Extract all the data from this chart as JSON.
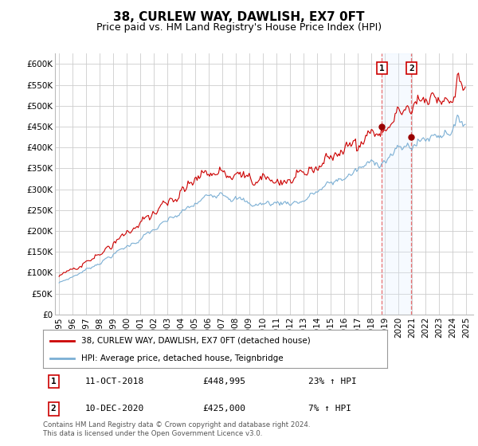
{
  "title": "38, CURLEW WAY, DAWLISH, EX7 0FT",
  "subtitle": "Price paid vs. HM Land Registry's House Price Index (HPI)",
  "ylabel_ticks": [
    0,
    50000,
    100000,
    150000,
    200000,
    250000,
    300000,
    350000,
    400000,
    450000,
    500000,
    550000,
    600000
  ],
  "ylabel_labels": [
    "£0",
    "£50K",
    "£100K",
    "£150K",
    "£200K",
    "£250K",
    "£300K",
    "£350K",
    "£400K",
    "£450K",
    "£500K",
    "£550K",
    "£600K"
  ],
  "ylim": [
    0,
    625000
  ],
  "xlim_start": 1994.7,
  "xlim_end": 2025.5,
  "marker1_x": 2018.78,
  "marker1_y": 448995,
  "marker1_label": "1",
  "marker1_date": "11-OCT-2018",
  "marker1_price": "£448,995",
  "marker1_hpi": "23% ↑ HPI",
  "marker2_x": 2020.95,
  "marker2_y": 425000,
  "marker2_label": "2",
  "marker2_date": "10-DEC-2020",
  "marker2_price": "£425,000",
  "marker2_hpi": "7% ↑ HPI",
  "line1_color": "#cc0000",
  "line2_color": "#7bafd4",
  "marker_color": "#990000",
  "vline_color": "#e87070",
  "span_color": "#ddeeff",
  "grid_color": "#cccccc",
  "background_color": "#ffffff",
  "legend_line1": "38, CURLEW WAY, DAWLISH, EX7 0FT (detached house)",
  "legend_line2": "HPI: Average price, detached house, Teignbridge",
  "footnote": "Contains HM Land Registry data © Crown copyright and database right 2024.\nThis data is licensed under the Open Government Licence v3.0.",
  "title_fontsize": 11,
  "subtitle_fontsize": 9,
  "axis_fontsize": 7.5,
  "xtick_years": [
    1995,
    1996,
    1997,
    1998,
    1999,
    2000,
    2001,
    2002,
    2003,
    2004,
    2005,
    2006,
    2007,
    2008,
    2009,
    2010,
    2011,
    2012,
    2013,
    2014,
    2015,
    2016,
    2017,
    2018,
    2019,
    2020,
    2021,
    2022,
    2023,
    2024,
    2025
  ]
}
